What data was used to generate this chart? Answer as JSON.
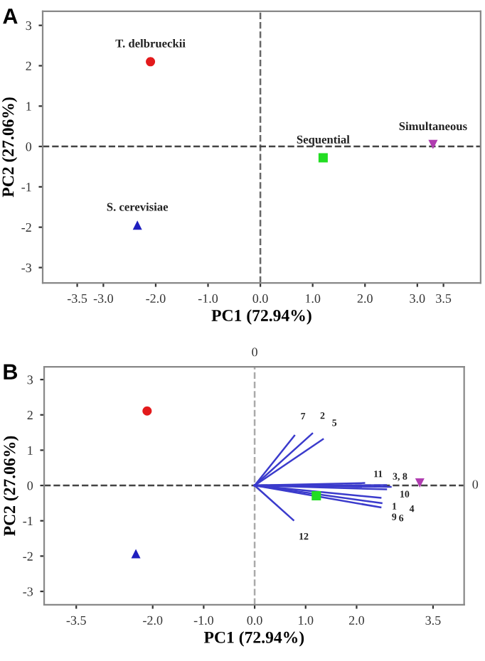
{
  "chart_data": [
    {
      "type": "scatter",
      "title": "A",
      "xlabel": "PC1 (72.94%)",
      "ylabel": "PC2 (27.06%)",
      "xlim": [
        -4.16,
        4.21
      ],
      "ylim": [
        -3.38,
        3.35
      ],
      "xticks": [
        {
          "value": -3.5,
          "label": "-3.5"
        },
        {
          "value": -3,
          "label": "-3.0"
        },
        {
          "value": -2,
          "label": "-2.0"
        },
        {
          "value": -1,
          "label": "-1.0"
        },
        {
          "value": 0,
          "label": "0.0"
        },
        {
          "value": 1,
          "label": "1.0"
        },
        {
          "value": 2,
          "label": "2.0"
        },
        {
          "value": 3,
          "label": "3.0"
        },
        {
          "value": 3.5,
          "label": "3.5"
        }
      ],
      "yticks": [
        -3,
        -2,
        -1,
        0,
        1,
        2,
        3
      ],
      "grid": false,
      "series": [
        {
          "color": "#e31a1c",
          "marker": "circle",
          "x": [
            -2.1
          ],
          "values": [
            2.1
          ]
        },
        {
          "color": "#1f1fbf",
          "marker": "triangle",
          "x": [
            -2.35
          ],
          "values": [
            -1.95
          ]
        },
        {
          "color": "#22dd22",
          "marker": "square",
          "x": [
            1.2
          ],
          "values": [
            -0.28
          ]
        },
        {
          "color": "#b03cb0",
          "marker": "triangle_down",
          "x": [
            3.3
          ],
          "values": [
            0.05
          ]
        }
      ],
      "ref_lines": [
        {
          "axis": "x",
          "value": 0,
          "color": "#666666",
          "line_style": "dashed"
        },
        {
          "axis": "y",
          "value": 0,
          "color": "#444444",
          "line_style": "dashed"
        }
      ],
      "annotations": [
        {
          "text": "T. delbrueckii",
          "x": -2.1,
          "y": 2.1
        },
        {
          "text": "S. cerevisiae",
          "x": -2.35,
          "y": -1.95
        },
        {
          "text": "Sequential",
          "x": 1.2,
          "y": -0.28
        },
        {
          "text": "Simultaneous",
          "x": 3.3,
          "y": 0.05
        }
      ]
    },
    {
      "type": "scatter",
      "title": "B",
      "xlabel": "PC1 (72.94%)",
      "ylabel": "PC2 (27.06%)",
      "xlim": [
        -4.13,
        4.11
      ],
      "ylim": [
        -3.38,
        3.36
      ],
      "xticks": [
        {
          "value": -3.5,
          "label": "-3.5"
        },
        {
          "value": -2,
          "label": "-2.0"
        },
        {
          "value": -1,
          "label": "-1.0"
        },
        {
          "value": 0,
          "label": "0.0"
        },
        {
          "value": 1,
          "label": "1.0"
        },
        {
          "value": 2,
          "label": "2.0"
        },
        {
          "value": 3.5,
          "label": "3.5"
        }
      ],
      "yticks": [
        -3,
        -2,
        -1,
        0,
        1,
        2,
        3
      ],
      "grid": false,
      "series": [
        {
          "color": "#e31a1c",
          "marker": "circle",
          "x": [
            -2.11
          ],
          "values": [
            2.11
          ]
        },
        {
          "color": "#1f1fbf",
          "marker": "triangle",
          "x": [
            -2.33
          ],
          "values": [
            -1.93
          ]
        },
        {
          "color": "#22dd22",
          "marker": "square",
          "x": [
            1.21
          ],
          "values": [
            -0.29
          ]
        },
        {
          "color": "#b03cb0",
          "marker": "triangle_down",
          "x": [
            3.24
          ],
          "values": [
            0.07
          ]
        },
        {
          "type": "line",
          "color": "#3b3bcc",
          "x": [
            0,
            0.78
          ],
          "values": [
            0,
            1.41
          ]
        },
        {
          "type": "line",
          "color": "#3b3bcc",
          "x": [
            0,
            1.13
          ],
          "values": [
            0,
            1.47
          ]
        },
        {
          "type": "line",
          "color": "#3b3bcc",
          "x": [
            0,
            1.34
          ],
          "values": [
            0,
            1.31
          ]
        },
        {
          "type": "line",
          "color": "#3b3bcc",
          "x": [
            0,
            2.15
          ],
          "values": [
            0,
            0.07
          ]
        },
        {
          "type": "line",
          "color": "#3b3bcc",
          "x": [
            0,
            2.58
          ],
          "values": [
            0,
            0.01
          ]
        },
        {
          "type": "line",
          "color": "#3b3bcc",
          "x": [
            0,
            2.67
          ],
          "values": [
            0,
            -0.04
          ]
        },
        {
          "type": "line",
          "color": "#3b3bcc",
          "x": [
            0,
            2.58
          ],
          "values": [
            0,
            -0.11
          ]
        },
        {
          "type": "line",
          "color": "#3b3bcc",
          "x": [
            0,
            2.47
          ],
          "values": [
            0,
            -0.35
          ]
        },
        {
          "type": "line",
          "color": "#3b3bcc",
          "x": [
            0,
            2.49
          ],
          "values": [
            0,
            -0.5
          ]
        },
        {
          "type": "line",
          "color": "#3b3bcc",
          "x": [
            0,
            2.47
          ],
          "values": [
            0,
            -0.62
          ]
        },
        {
          "type": "line",
          "color": "#3b3bcc",
          "x": [
            0,
            0.76
          ],
          "values": [
            0,
            -0.98
          ]
        }
      ],
      "ref_lines": [
        {
          "axis": "x",
          "value": 0,
          "color": "#aaaaaa",
          "line_style": "dashed",
          "label": "0"
        },
        {
          "axis": "y",
          "value": 0,
          "color": "#444444",
          "line_style": "dashed",
          "label": "0"
        }
      ],
      "annotations": [
        {
          "text": "7",
          "x": 0.78,
          "y": 1.41
        },
        {
          "text": "2",
          "x": 1.13,
          "y": 1.47
        },
        {
          "text": "5",
          "x": 1.34,
          "y": 1.31
        },
        {
          "text": "11",
          "x": 2.15,
          "y": 0.07
        },
        {
          "text": "3, 8",
          "x": 2.58,
          "y": 0.01
        },
        {
          "text": "10",
          "x": 2.67,
          "y": -0.04
        },
        {
          "text": "4",
          "x": 2.58,
          "y": -0.11
        },
        {
          "text": "1",
          "x": 2.47,
          "y": -0.35
        },
        {
          "text": "6",
          "x": 2.49,
          "y": -0.5
        },
        {
          "text": "9",
          "x": 2.47,
          "y": -0.62
        },
        {
          "text": "12",
          "x": 0.76,
          "y": -0.98
        }
      ]
    }
  ]
}
